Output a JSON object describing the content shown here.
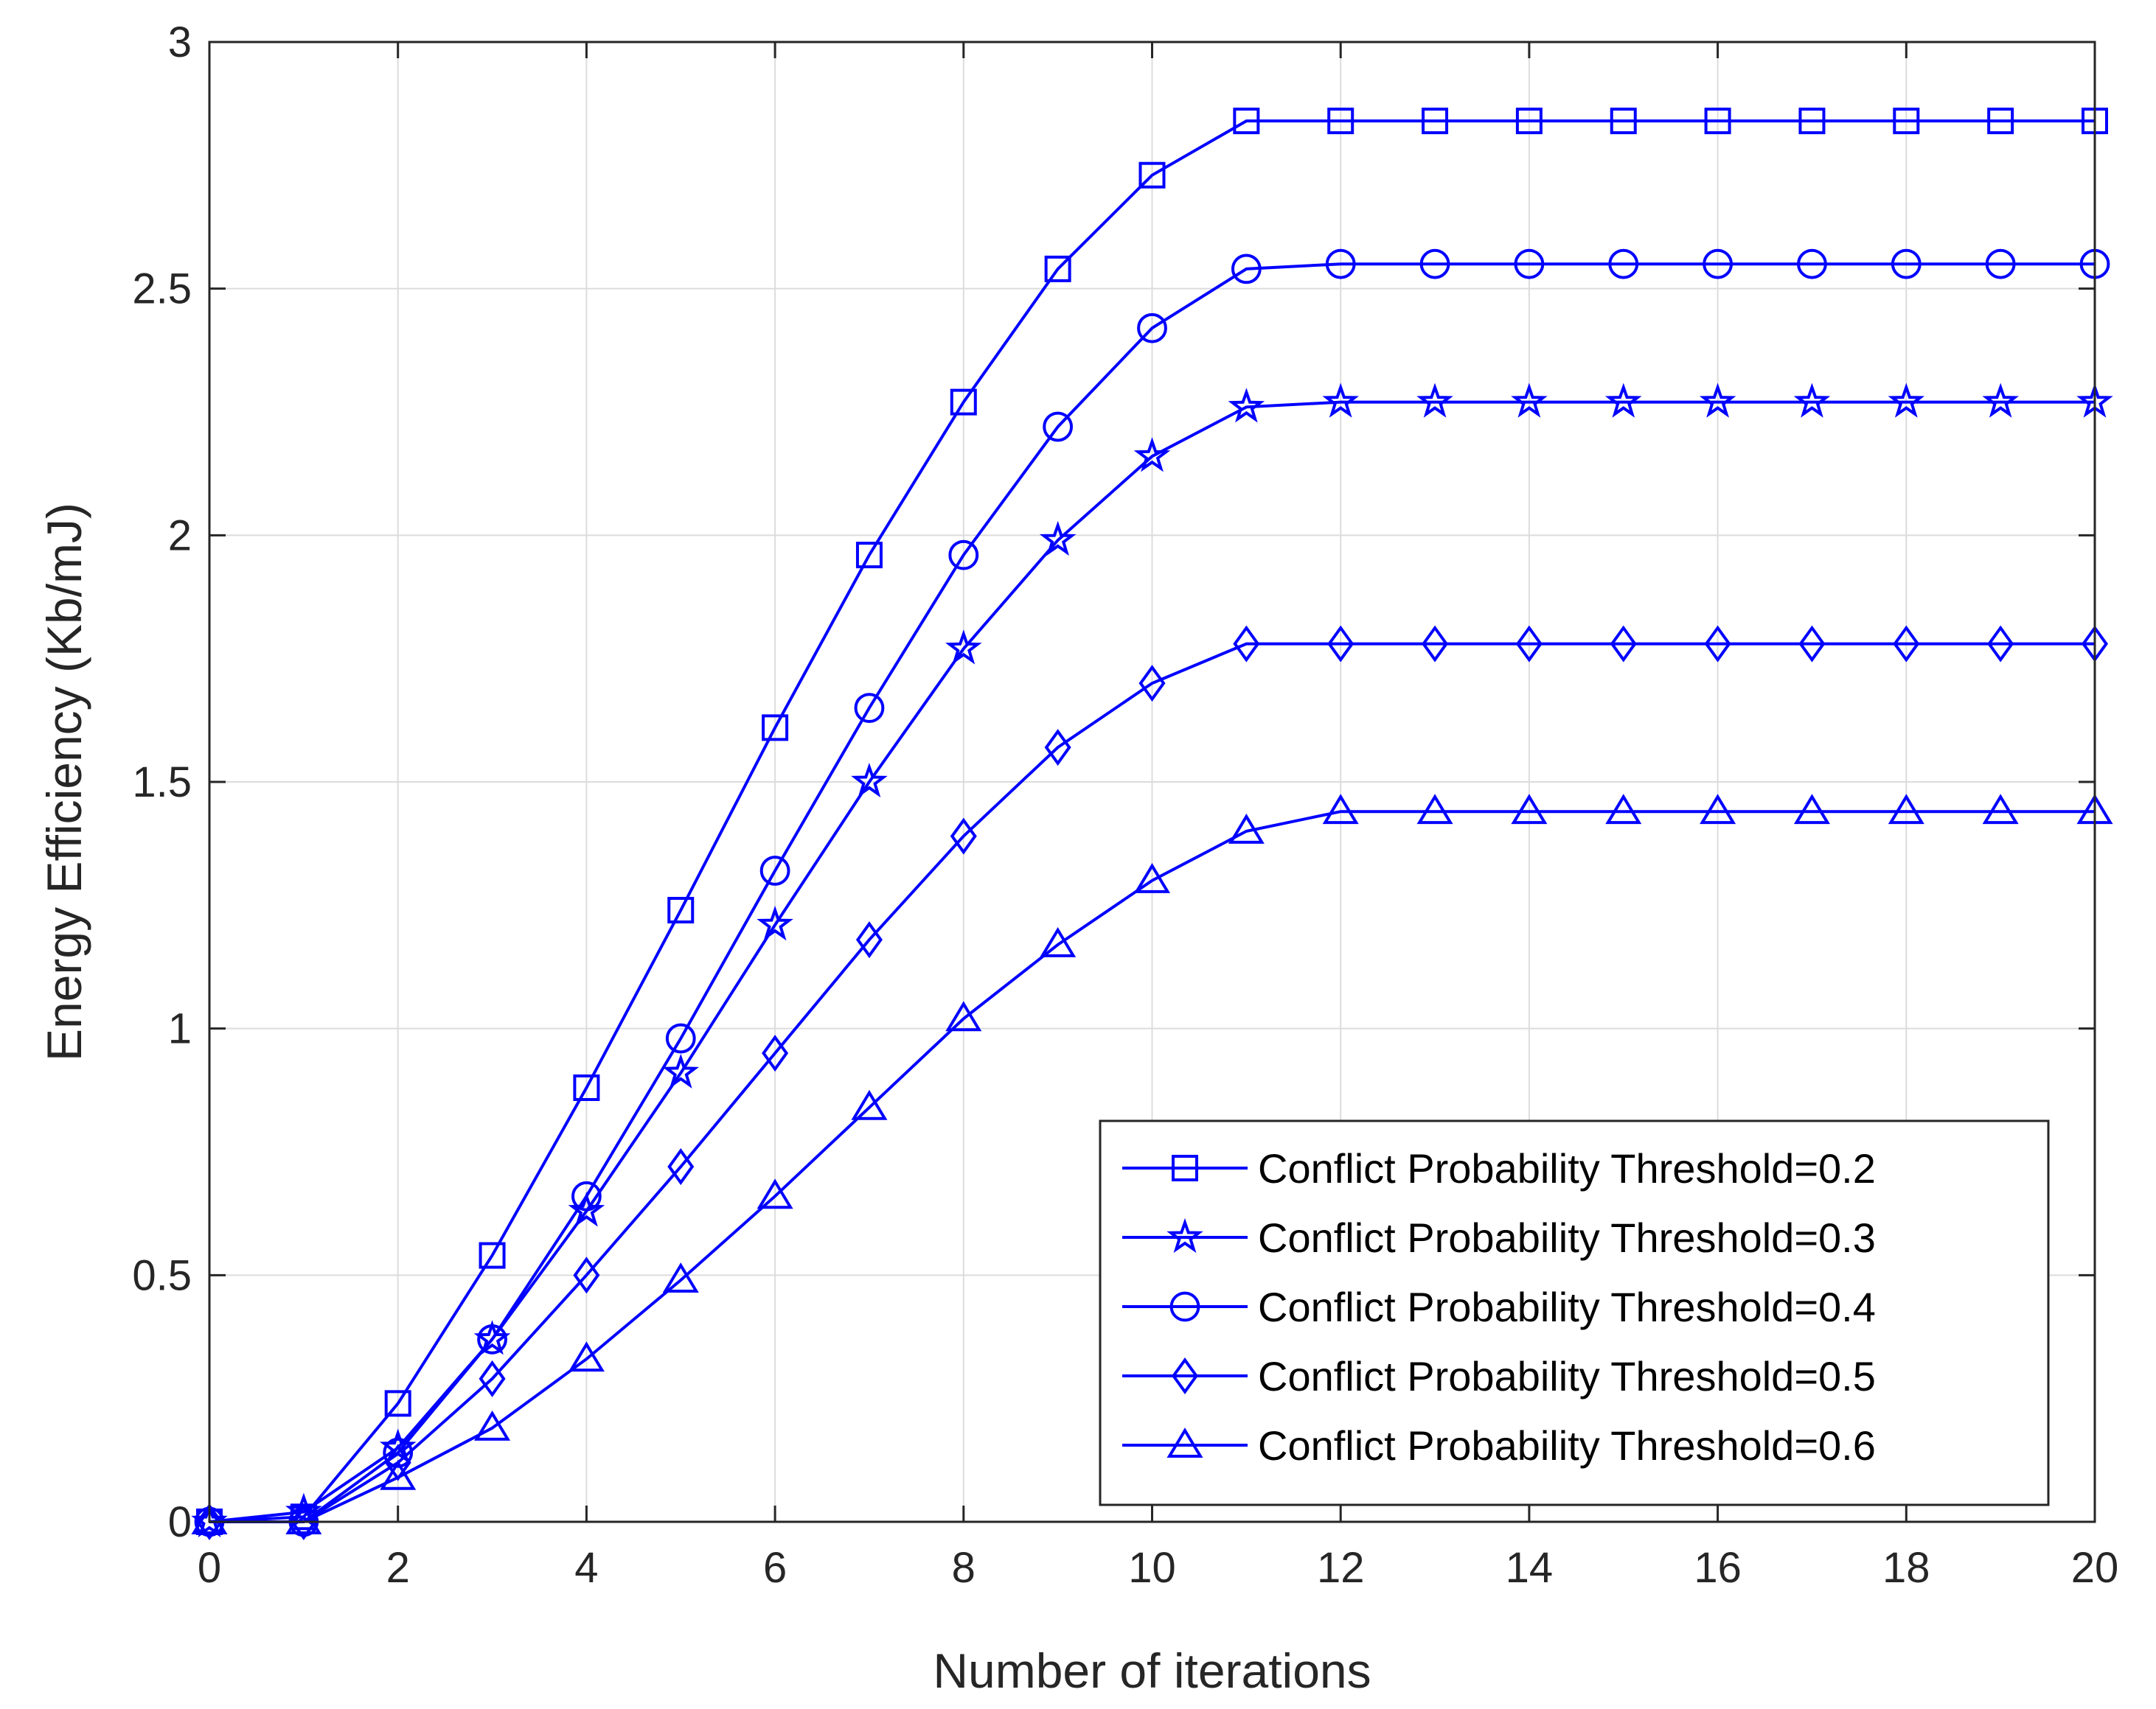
{
  "chart_data": {
    "type": "line",
    "title": "",
    "xlabel": "Number of iterations",
    "ylabel": "Energy Efficiency (Kb/mJ)",
    "xlim": [
      0,
      20
    ],
    "ylim": [
      0,
      3
    ],
    "xticks": [
      0,
      2,
      4,
      6,
      8,
      10,
      12,
      14,
      16,
      18,
      20
    ],
    "yticks": [
      0,
      0.5,
      1,
      1.5,
      2,
      2.5,
      3
    ],
    "xtick_labels": [
      "0",
      "2",
      "4",
      "6",
      "8",
      "10",
      "12",
      "14",
      "16",
      "18",
      "20"
    ],
    "ytick_labels": [
      "0",
      "0.5",
      "1",
      "1.5",
      "2",
      "2.5",
      "3"
    ],
    "grid": true,
    "legend_position": "bottom-right",
    "line_color": "#0000ff",
    "x": [
      0,
      1,
      2,
      3,
      4,
      5,
      6,
      7,
      8,
      9,
      10,
      11,
      12,
      13,
      14,
      15,
      16,
      17,
      18,
      19,
      20
    ],
    "series": [
      {
        "name": "Conflict Probability Threshold=0.2",
        "marker": "square",
        "values": [
          0,
          0.01,
          0.24,
          0.54,
          0.88,
          1.24,
          1.61,
          1.96,
          2.27,
          2.54,
          2.73,
          2.84,
          2.84,
          2.84,
          2.84,
          2.84,
          2.84,
          2.84,
          2.84,
          2.84,
          2.84
        ]
      },
      {
        "name": "Conflict Probability Threshold=0.3",
        "marker": "star",
        "values": [
          0,
          0.02,
          0.15,
          0.37,
          0.63,
          0.91,
          1.21,
          1.5,
          1.77,
          1.99,
          2.16,
          2.26,
          2.27,
          2.27,
          2.27,
          2.27,
          2.27,
          2.27,
          2.27,
          2.27,
          2.27
        ]
      },
      {
        "name": "Conflict Probability Threshold=0.4",
        "marker": "circle",
        "values": [
          0,
          0.0,
          0.14,
          0.37,
          0.66,
          0.98,
          1.32,
          1.65,
          1.96,
          2.22,
          2.42,
          2.54,
          2.55,
          2.55,
          2.55,
          2.55,
          2.55,
          2.55,
          2.55,
          2.55,
          2.55
        ]
      },
      {
        "name": "Conflict Probability Threshold=0.5",
        "marker": "diamond",
        "values": [
          0,
          0.0,
          0.12,
          0.29,
          0.5,
          0.72,
          0.95,
          1.18,
          1.39,
          1.57,
          1.7,
          1.78,
          1.78,
          1.78,
          1.78,
          1.78,
          1.78,
          1.78,
          1.78,
          1.78,
          1.78
        ]
      },
      {
        "name": "Conflict Probability Threshold=0.6",
        "marker": "triangle",
        "values": [
          0,
          0.0,
          0.09,
          0.19,
          0.33,
          0.49,
          0.66,
          0.84,
          1.02,
          1.17,
          1.3,
          1.4,
          1.44,
          1.44,
          1.44,
          1.44,
          1.44,
          1.44,
          1.44,
          1.44,
          1.44
        ]
      }
    ]
  }
}
